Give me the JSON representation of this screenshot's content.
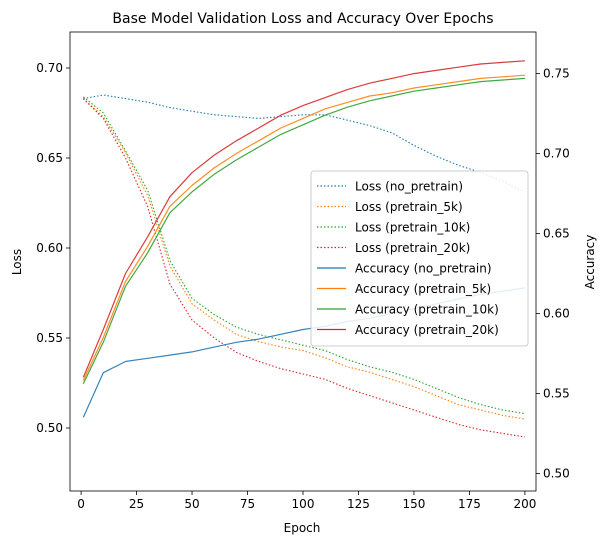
{
  "chart_data": {
    "type": "line",
    "title": "Base Model Validation Loss and Accuracy Over Epochs",
    "xlabel": "Epoch",
    "ylabel_left": "Loss",
    "ylabel_right": "Accuracy",
    "xlim": [
      -5,
      205
    ],
    "ylim_left": [
      0.465,
      0.72
    ],
    "ylim_right": [
      0.489,
      0.776
    ],
    "xticks": [
      0,
      25,
      50,
      75,
      100,
      125,
      150,
      175,
      200
    ],
    "yticks_left": [
      0.5,
      0.55,
      0.6,
      0.65,
      0.7
    ],
    "yticks_right": [
      0.5,
      0.55,
      0.6,
      0.65,
      0.7,
      0.75
    ],
    "grid": false,
    "legend_position": "center-right",
    "x": [
      1,
      10,
      20,
      30,
      40,
      50,
      60,
      70,
      80,
      90,
      100,
      110,
      120,
      130,
      140,
      150,
      160,
      170,
      180,
      190,
      200
    ],
    "series": [
      {
        "name": "Loss (no_pretrain)",
        "axis": "left",
        "style": "dotted",
        "color": "#1f77b4",
        "values": [
          0.683,
          0.685,
          0.683,
          0.681,
          0.678,
          0.676,
          0.674,
          0.673,
          0.672,
          0.673,
          0.674,
          0.674,
          0.671,
          0.668,
          0.664,
          0.657,
          0.651,
          0.646,
          0.642,
          0.637,
          0.631
        ]
      },
      {
        "name": "Loss (pretrain_5k)",
        "axis": "left",
        "style": "dotted",
        "color": "#ff7f0e",
        "values": [
          0.683,
          0.673,
          0.653,
          0.629,
          0.59,
          0.569,
          0.56,
          0.552,
          0.548,
          0.545,
          0.543,
          0.539,
          0.534,
          0.531,
          0.527,
          0.523,
          0.518,
          0.513,
          0.51,
          0.507,
          0.505
        ]
      },
      {
        "name": "Loss (pretrain_10k)",
        "axis": "left",
        "style": "dotted",
        "color": "#2ca02c",
        "values": [
          0.684,
          0.675,
          0.654,
          0.632,
          0.593,
          0.572,
          0.563,
          0.556,
          0.552,
          0.549,
          0.546,
          0.543,
          0.538,
          0.534,
          0.531,
          0.527,
          0.522,
          0.517,
          0.513,
          0.51,
          0.508
        ]
      },
      {
        "name": "Loss (pretrain_20k)",
        "axis": "left",
        "style": "dotted",
        "color": "#d62728",
        "values": [
          0.683,
          0.672,
          0.65,
          0.623,
          0.58,
          0.56,
          0.55,
          0.542,
          0.537,
          0.533,
          0.53,
          0.527,
          0.522,
          0.518,
          0.514,
          0.51,
          0.506,
          0.502,
          0.499,
          0.497,
          0.495
        ]
      },
      {
        "name": "Accuracy (no_pretrain)",
        "axis": "right",
        "style": "solid",
        "color": "#1f77b4",
        "values": [
          0.535,
          0.563,
          0.57,
          0.572,
          0.574,
          0.576,
          0.579,
          0.582,
          0.584,
          0.587,
          0.59,
          0.592,
          0.595,
          0.597,
          0.6,
          0.603,
          0.606,
          0.609,
          0.612,
          0.614,
          0.616
        ]
      },
      {
        "name": "Accuracy (pretrain_5k)",
        "axis": "right",
        "style": "solid",
        "color": "#ff7f0e",
        "values": [
          0.558,
          0.585,
          0.62,
          0.642,
          0.667,
          0.68,
          0.691,
          0.7,
          0.708,
          0.716,
          0.722,
          0.728,
          0.732,
          0.736,
          0.738,
          0.741,
          0.743,
          0.745,
          0.747,
          0.748,
          0.749
        ]
      },
      {
        "name": "Accuracy (pretrain_10k)",
        "axis": "right",
        "style": "solid",
        "color": "#2ca02c",
        "values": [
          0.556,
          0.582,
          0.617,
          0.638,
          0.663,
          0.676,
          0.687,
          0.696,
          0.704,
          0.712,
          0.718,
          0.724,
          0.729,
          0.733,
          0.736,
          0.739,
          0.741,
          0.743,
          0.745,
          0.746,
          0.747
        ]
      },
      {
        "name": "Accuracy (pretrain_20k)",
        "axis": "right",
        "style": "solid",
        "color": "#d62728",
        "values": [
          0.56,
          0.59,
          0.625,
          0.648,
          0.673,
          0.688,
          0.699,
          0.708,
          0.716,
          0.724,
          0.73,
          0.735,
          0.74,
          0.744,
          0.747,
          0.75,
          0.752,
          0.754,
          0.756,
          0.757,
          0.758
        ]
      }
    ]
  }
}
